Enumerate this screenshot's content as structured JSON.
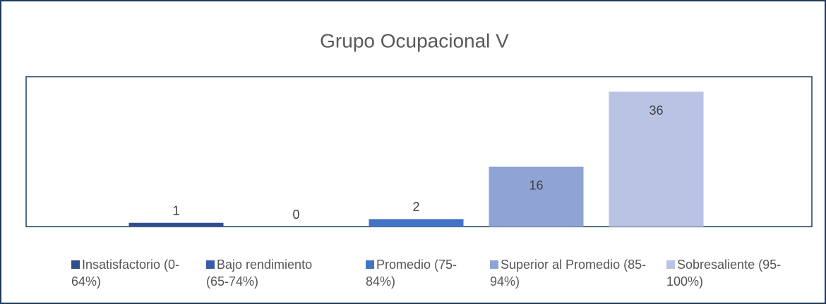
{
  "chart_data": {
    "type": "bar",
    "title": "Grupo Ocupacional V",
    "series": [
      {
        "name": "Insatisfactorio (0-64%)",
        "color": "#2f4d8c",
        "values": [
          1
        ]
      },
      {
        "name": "Bajo rendimiento (65-74%)",
        "color": "#3b5ca9",
        "values": [
          0
        ]
      },
      {
        "name": "Promedio (75-84%)",
        "color": "#4472c4",
        "values": [
          2
        ]
      },
      {
        "name": "Superior al Promedio (85-94%)",
        "color": "#8fa3d5",
        "values": [
          16
        ]
      },
      {
        "name": "Sobresaliente (95-100%)",
        "color": "#b9c3e4",
        "values": [
          36
        ]
      }
    ],
    "ylim": [
      0,
      40
    ]
  }
}
